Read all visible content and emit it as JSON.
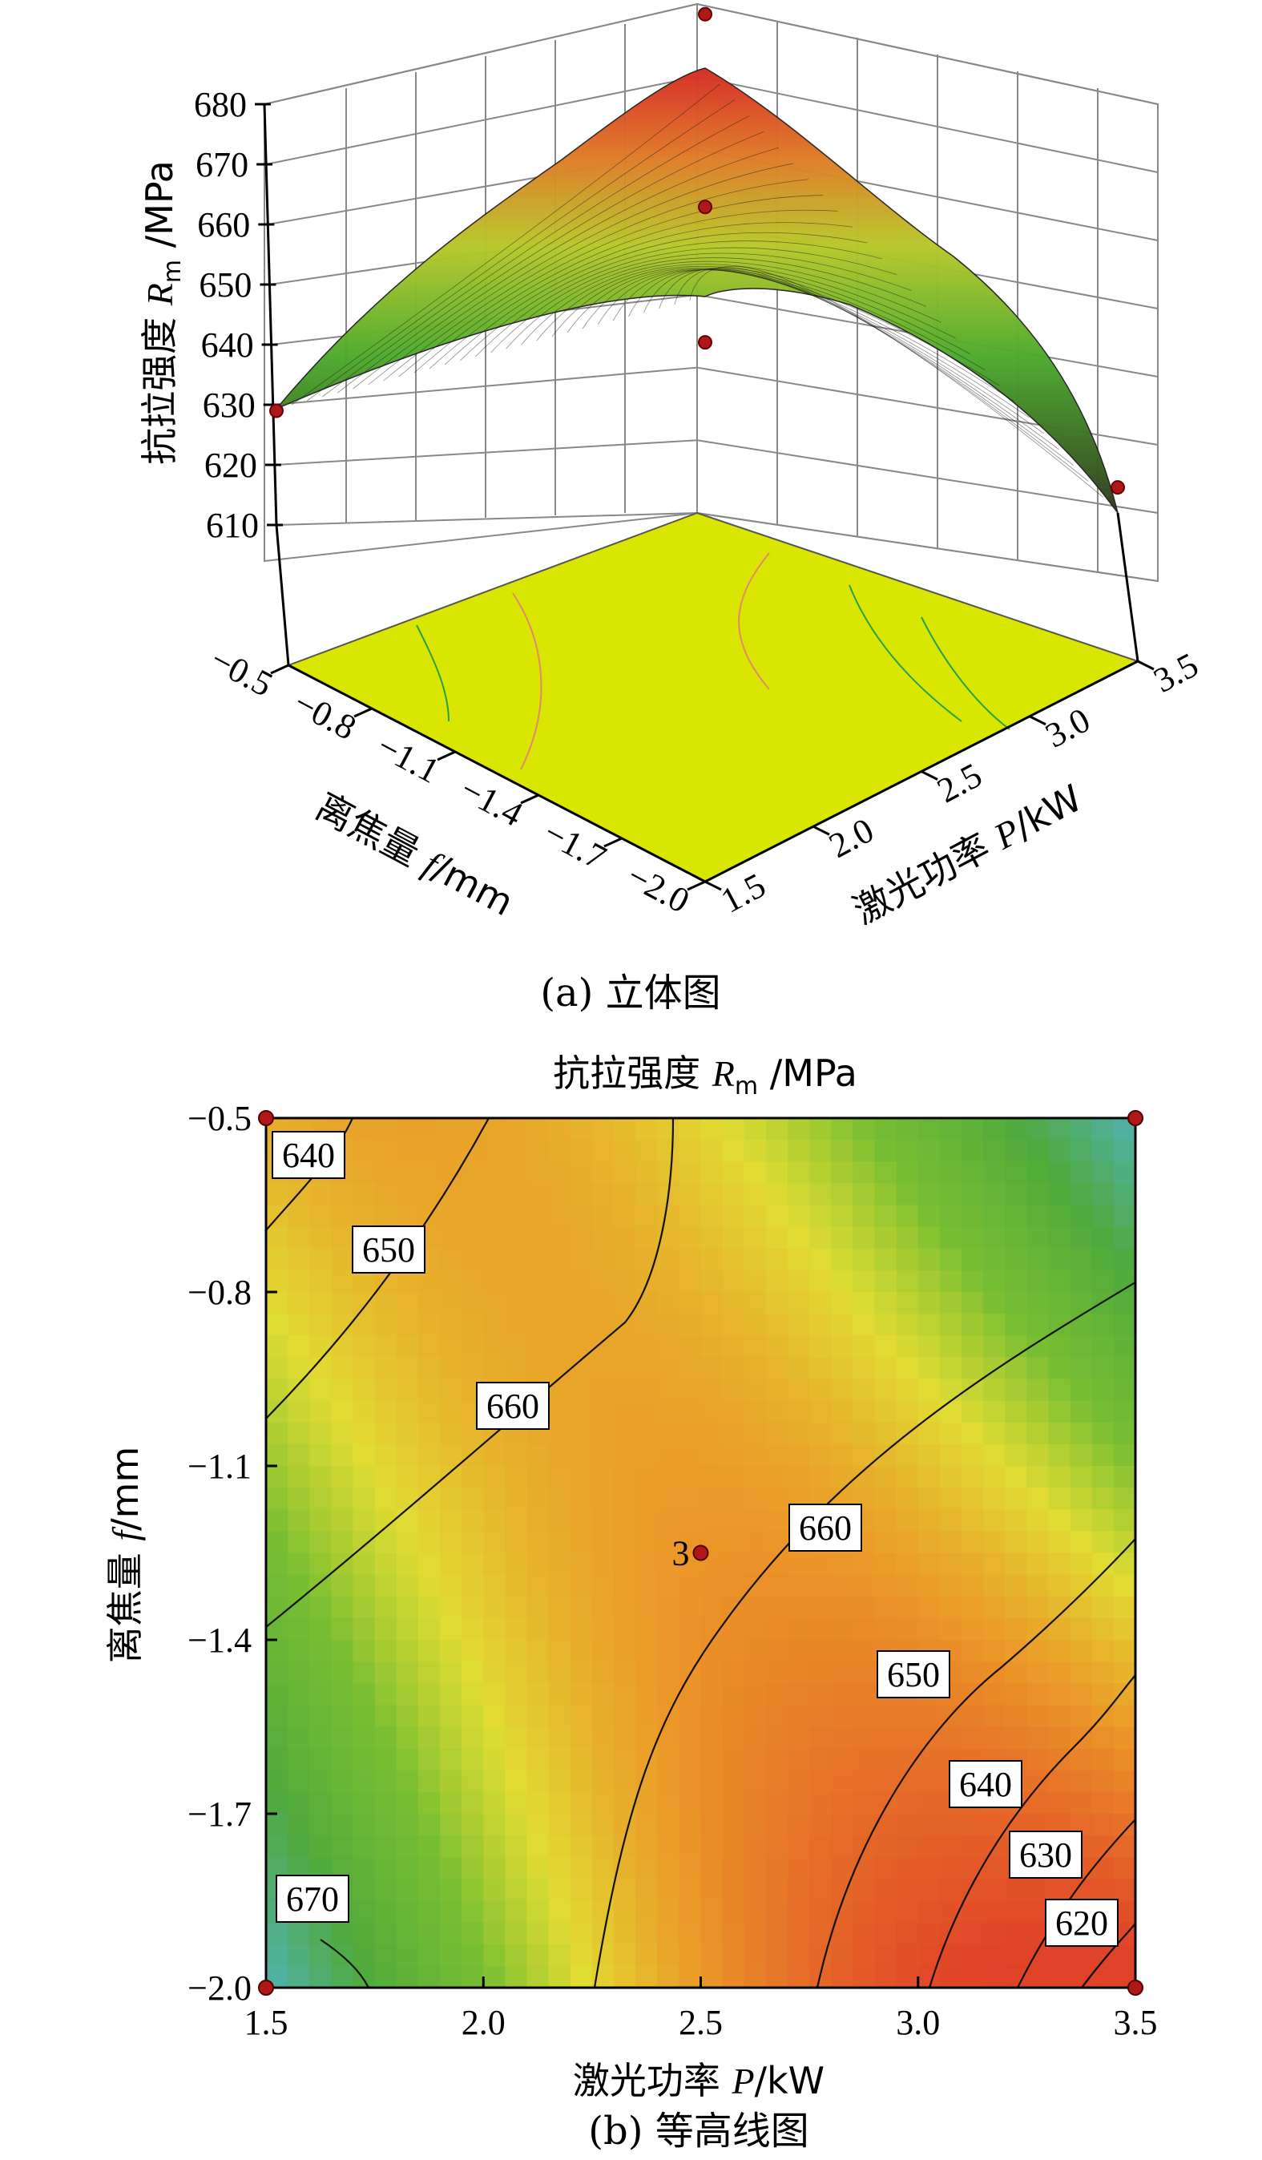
{
  "chart_data": [
    {
      "type": "surface",
      "zlabel": "抗拉强度 Rm /MPa",
      "zlabel_parts": {
        "prefix": "抗拉强度 ",
        "sym": "R",
        "sub": "m",
        "unit": " /MPa"
      },
      "xlabel": "离焦量 f/mm",
      "xlabel_parts": {
        "prefix": "离焦量 ",
        "sym": "f",
        "unit": "/mm"
      },
      "ylabel": "激光功率 P/kW",
      "ylabel_parts": {
        "prefix": "激光功率 ",
        "sym": "P",
        "unit": "/kW"
      },
      "z_ticks": [
        "610",
        "620",
        "630",
        "640",
        "650",
        "660",
        "670",
        "680"
      ],
      "x_ticks": [
        "−0.5",
        "−0.8",
        "−1.1",
        "−1.4",
        "−1.7",
        "−2.0"
      ],
      "y_ticks": [
        "1.5",
        "2.0",
        "2.5",
        "3.0",
        "3.5"
      ],
      "zlim": [
        610,
        680
      ],
      "floor_color": "#d8e600",
      "design_points": [
        {
          "f": -0.5,
          "P": 1.5,
          "Rm": 629
        },
        {
          "f": -0.5,
          "P": 3.5,
          "Rm": 683
        },
        {
          "f": -1.25,
          "P": 2.5,
          "Rm": 662
        },
        {
          "f": -1.25,
          "P": 2.5,
          "Rm": 650
        },
        {
          "f": -2.0,
          "P": 3.5,
          "Rm": 613
        }
      ],
      "caption": "(a) 立体图"
    },
    {
      "type": "contour",
      "title": "抗拉强度 Rm /MPa",
      "title_parts": {
        "prefix": "抗拉强度 ",
        "sym": "R",
        "sub": "m",
        "unit": " /MPa"
      },
      "xlabel": "激光功率 P/kW",
      "xlabel_parts": {
        "prefix": "激光功率 ",
        "sym": "P",
        "unit": "/kW"
      },
      "ylabel": "离焦量 f/mm",
      "ylabel_parts": {
        "prefix": "离焦量 ",
        "sym": "f",
        "unit": "/mm"
      },
      "x_ticks": [
        "1.5",
        "2.0",
        "2.5",
        "3.0",
        "3.5"
      ],
      "y_ticks": [
        "−0.5",
        "−0.8",
        "−1.1",
        "−1.4",
        "−1.7",
        "−2.0"
      ],
      "xlim": [
        1.5,
        3.5
      ],
      "ylim": [
        -2.0,
        -0.5
      ],
      "contour_levels": [
        620,
        630,
        640,
        650,
        660,
        670
      ],
      "contour_labels": [
        "640",
        "650",
        "660",
        "660",
        "650",
        "640",
        "630",
        "620",
        "670"
      ],
      "center_point": {
        "P": 2.5,
        "f": -1.25,
        "label": "3"
      },
      "corner_points": [
        {
          "P": 1.5,
          "f": -0.5
        },
        {
          "P": 3.5,
          "f": -0.5
        },
        {
          "P": 1.5,
          "f": -2.0
        },
        {
          "P": 3.5,
          "f": -2.0
        }
      ],
      "caption": "(b) 等高线图"
    }
  ]
}
